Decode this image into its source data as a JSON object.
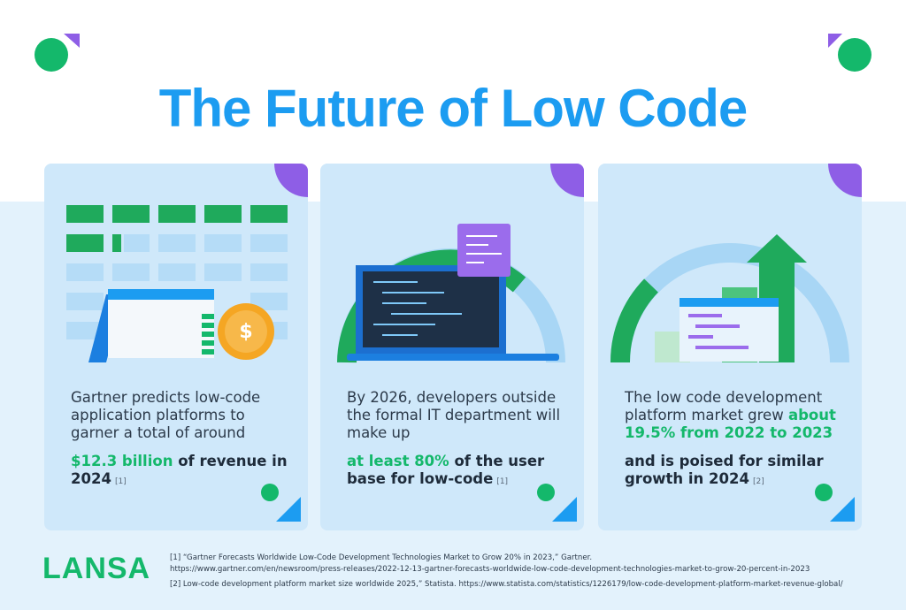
{
  "header": {
    "title": "The Future of Low Code"
  },
  "cards": [
    {
      "text": "Gartner predicts low-code application platforms to garner a total of around",
      "highlight": "$12.3 billion",
      "rest": " of revenue in 2024",
      "ref": "[1]"
    },
    {
      "text": "By 2026, developers outside the formal IT department will make up",
      "highlight": "at least 80%",
      "rest": " of the user base for low-code",
      "ref": "[1]"
    },
    {
      "text": "The low code development platform market grew ",
      "highlight": "about 19.5% from 2022 to 2023",
      "rest": "and is poised for similar growth in 2024",
      "ref": "[2]"
    }
  ],
  "footer": {
    "logo": "LANSA",
    "notes": [
      "[1] “Gartner Forecasts Worldwide Low-Code Development Technologies Market to Grow 20% in 2023,” Gartner.",
      "https://www.gartner.com/en/newsroom/press-releases/2022-12-13-gartner-forecasts-worldwide-low-code-development-technologies-market-to-grow-20-percent-in-2023",
      "[2] Low-code development platform market size worldwide 2025,” Statista. https://www.statista.com/statistics/1226179/low-code-development-platform-market-revenue-global/"
    ]
  }
}
